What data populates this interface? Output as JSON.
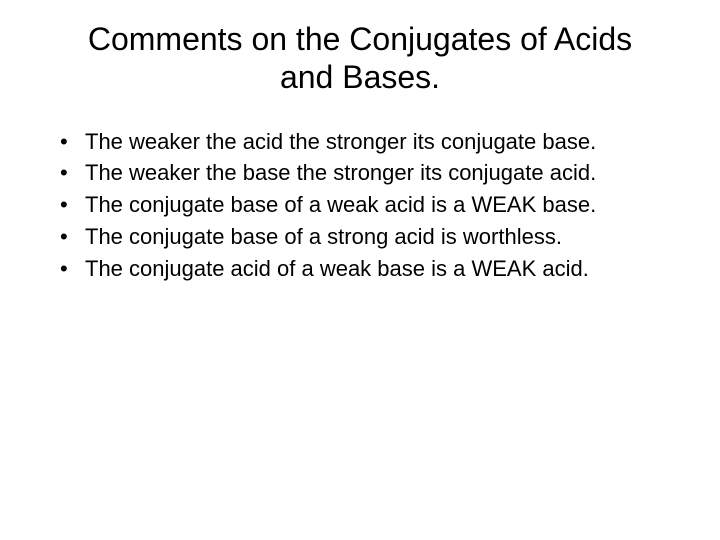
{
  "slide": {
    "title": "Comments on the Conjugates of Acids and Bases.",
    "bullets": [
      "The weaker the acid the stronger its conjugate base.",
      "The weaker the base the stronger its conjugate acid.",
      "The conjugate base of a weak acid is a WEAK base.",
      "The conjugate base of a strong acid is worthless.",
      "The conjugate acid of a weak base is a WEAK acid."
    ]
  },
  "styling": {
    "background_color": "#ffffff",
    "text_color": "#000000",
    "title_fontsize": 32,
    "bullet_fontsize": 22,
    "font_family": "Arial"
  }
}
